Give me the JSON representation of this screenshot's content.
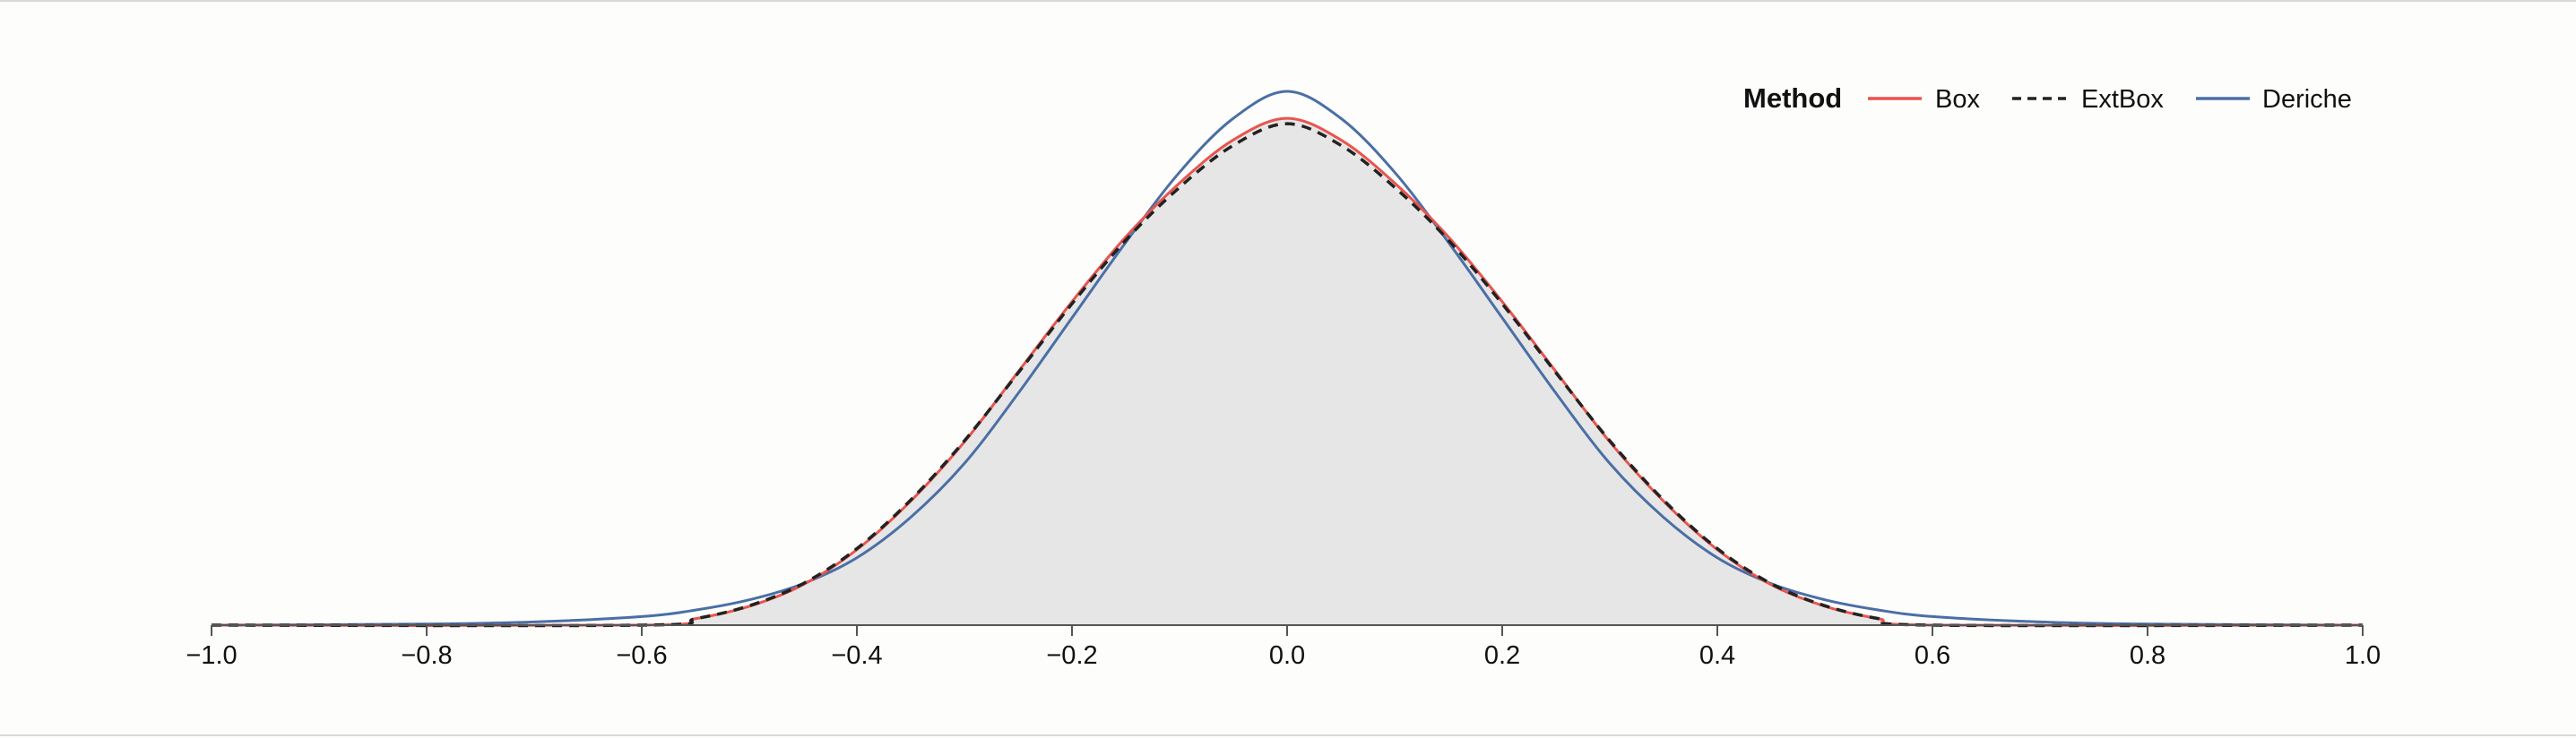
{
  "chart_data": {
    "type": "line",
    "title": "",
    "xlabel": "",
    "ylabel": "",
    "xlim": [
      -1.0,
      1.0
    ],
    "ylim": [
      0,
      1.0
    ],
    "x_ticks": [
      "−1.0",
      "−0.8",
      "−0.6",
      "−0.4",
      "−0.2",
      "0.0",
      "0.2",
      "0.4",
      "0.6",
      "0.8",
      "1.0"
    ],
    "x_tick_values": [
      -1.0,
      -0.8,
      -0.6,
      -0.4,
      -0.2,
      0.0,
      0.2,
      0.4,
      0.6,
      0.8,
      1.0
    ],
    "area_fill": {
      "color": "#e6e6e6",
      "description": "density estimate underlying the curves"
    },
    "legend": {
      "title": "Method",
      "placement": "top-right"
    },
    "series": [
      {
        "name": "Box",
        "color": "#e8554e",
        "dash": "solid",
        "x": [
          -1.0,
          -0.6,
          -0.55,
          -0.5,
          -0.45,
          -0.4,
          -0.35,
          -0.3,
          -0.25,
          -0.2,
          -0.15,
          -0.1,
          -0.05,
          0.0,
          0.05,
          0.1,
          0.15,
          0.2,
          0.25,
          0.3,
          0.35,
          0.4,
          0.45,
          0.5,
          0.55,
          0.6,
          1.0
        ],
        "y": [
          0.0,
          0.0,
          0.012,
          0.035,
          0.075,
          0.14,
          0.23,
          0.34,
          0.47,
          0.6,
          0.72,
          0.82,
          0.9,
          0.94,
          0.9,
          0.82,
          0.72,
          0.6,
          0.47,
          0.34,
          0.23,
          0.14,
          0.075,
          0.035,
          0.012,
          0.0,
          0.0
        ]
      },
      {
        "name": "ExtBox",
        "color": "#222222",
        "dash": "dashed",
        "x": [
          -1.0,
          -0.6,
          -0.55,
          -0.5,
          -0.45,
          -0.4,
          -0.35,
          -0.3,
          -0.25,
          -0.2,
          -0.15,
          -0.1,
          -0.05,
          0.0,
          0.05,
          0.1,
          0.15,
          0.2,
          0.25,
          0.3,
          0.35,
          0.4,
          0.45,
          0.5,
          0.55,
          0.6,
          1.0
        ],
        "y": [
          0.0,
          0.0,
          0.012,
          0.036,
          0.077,
          0.142,
          0.232,
          0.342,
          0.468,
          0.596,
          0.714,
          0.812,
          0.89,
          0.93,
          0.89,
          0.812,
          0.714,
          0.596,
          0.468,
          0.342,
          0.232,
          0.142,
          0.077,
          0.036,
          0.012,
          0.0,
          0.0
        ]
      },
      {
        "name": "Deriche",
        "color": "#4a6fa5",
        "dash": "solid",
        "x": [
          -1.0,
          -0.8,
          -0.7,
          -0.6,
          -0.55,
          -0.5,
          -0.45,
          -0.4,
          -0.35,
          -0.3,
          -0.25,
          -0.2,
          -0.15,
          -0.1,
          -0.05,
          0.0,
          0.05,
          0.1,
          0.15,
          0.2,
          0.25,
          0.3,
          0.35,
          0.4,
          0.45,
          0.5,
          0.55,
          0.6,
          0.7,
          0.8,
          1.0
        ],
        "y": [
          0.0,
          0.002,
          0.006,
          0.016,
          0.028,
          0.047,
          0.077,
          0.125,
          0.2,
          0.3,
          0.43,
          0.57,
          0.71,
          0.84,
          0.94,
          0.99,
          0.94,
          0.84,
          0.71,
          0.57,
          0.43,
          0.3,
          0.2,
          0.125,
          0.077,
          0.047,
          0.028,
          0.016,
          0.006,
          0.002,
          0.0
        ]
      }
    ]
  }
}
